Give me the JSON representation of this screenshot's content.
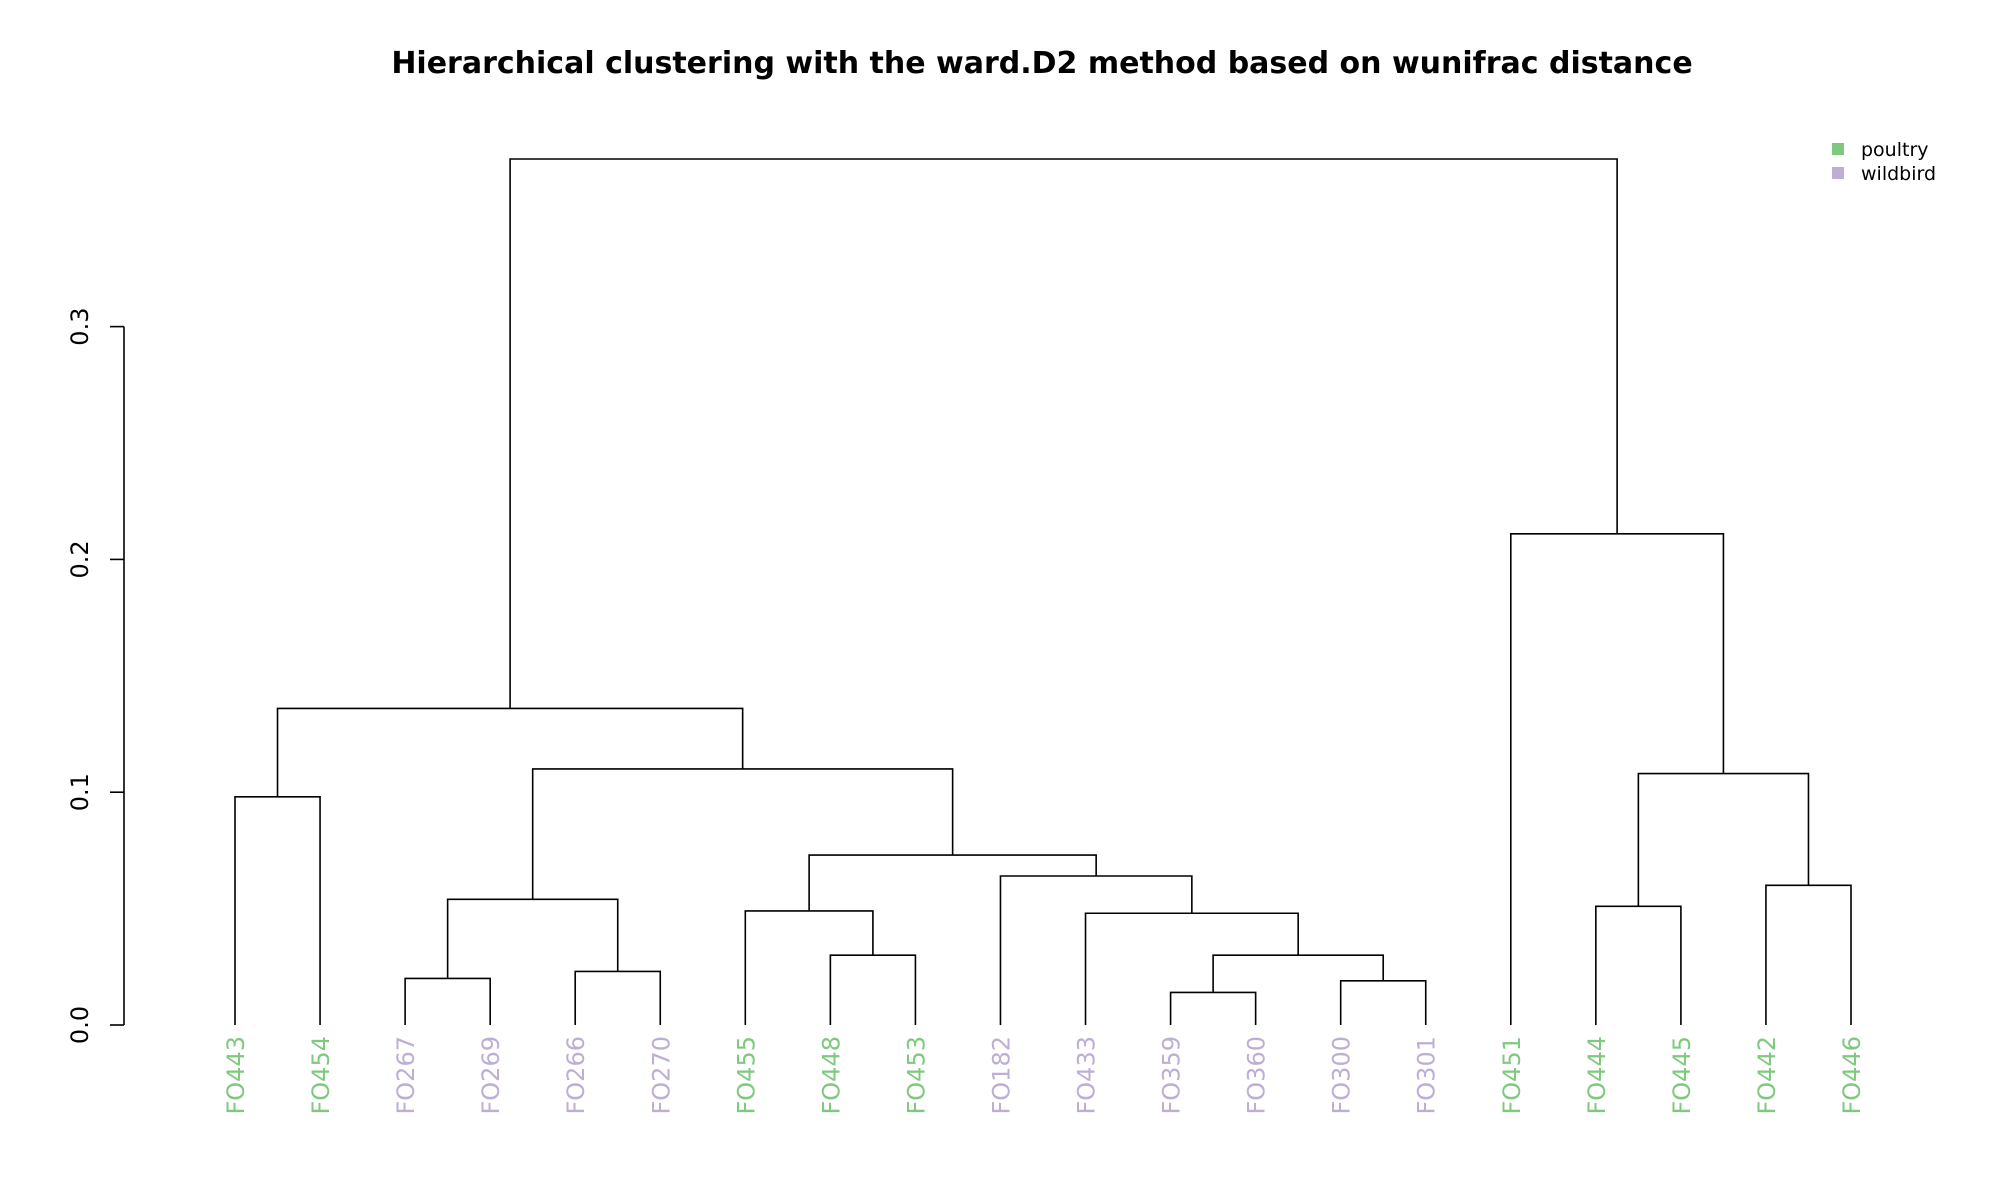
{
  "chart_data": {
    "type": "dendrogram",
    "title": "Hierarchical clustering with the ward.D2 method based on wunifrac distance",
    "xlabel": "",
    "ylabel": "",
    "ylim": [
      0,
      0.372
    ],
    "yticks": [
      {
        "value": 0.0,
        "label": "0.0"
      },
      {
        "value": 0.1,
        "label": "0.1"
      },
      {
        "value": 0.2,
        "label": "0.2"
      },
      {
        "value": 0.3,
        "label": "0.3"
      }
    ],
    "grid": false,
    "legend_position": "top-right",
    "groups": [
      {
        "name": "poultry",
        "color": "#7FC97F"
      },
      {
        "name": "wildbird",
        "color": "#BEAED4"
      }
    ],
    "leaves": [
      {
        "label": "FO443",
        "group": "poultry"
      },
      {
        "label": "FO454",
        "group": "poultry"
      },
      {
        "label": "FO267",
        "group": "wildbird"
      },
      {
        "label": "FO269",
        "group": "wildbird"
      },
      {
        "label": "FO266",
        "group": "wildbird"
      },
      {
        "label": "FO270",
        "group": "wildbird"
      },
      {
        "label": "FO455",
        "group": "poultry"
      },
      {
        "label": "FO448",
        "group": "poultry"
      },
      {
        "label": "FO453",
        "group": "poultry"
      },
      {
        "label": "FO182",
        "group": "wildbird"
      },
      {
        "label": "FO433",
        "group": "wildbird"
      },
      {
        "label": "FO359",
        "group": "wildbird"
      },
      {
        "label": "FO360",
        "group": "wildbird"
      },
      {
        "label": "FO300",
        "group": "wildbird"
      },
      {
        "label": "FO301",
        "group": "wildbird"
      },
      {
        "label": "FO451",
        "group": "poultry"
      },
      {
        "label": "FO444",
        "group": "poultry"
      },
      {
        "label": "FO445",
        "group": "poultry"
      },
      {
        "label": "FO442",
        "group": "poultry"
      },
      {
        "label": "FO446",
        "group": "poultry"
      }
    ],
    "merges": [
      {
        "left": "FO359",
        "right": "FO360",
        "height": 0.014
      },
      {
        "left": "FO300",
        "right": "FO301",
        "height": 0.019
      },
      {
        "left": "FO267",
        "right": "FO269",
        "height": 0.02
      },
      {
        "left": "FO266",
        "right": "FO270",
        "height": 0.023
      },
      {
        "left": "FO448",
        "right": "FO453",
        "height": 0.03
      },
      {
        "left": 0,
        "right": 1,
        "height": 0.03
      },
      {
        "left": "FO433",
        "right": 5,
        "height": 0.048
      },
      {
        "left": "FO455",
        "right": 4,
        "height": 0.049
      },
      {
        "left": "FO444",
        "right": "FO445",
        "height": 0.051
      },
      {
        "left": 2,
        "right": 3,
        "height": 0.054
      },
      {
        "left": "FO442",
        "right": "FO446",
        "height": 0.06
      },
      {
        "left": "FO182",
        "right": 6,
        "height": 0.064
      },
      {
        "left": 7,
        "right": 11,
        "height": 0.073
      },
      {
        "left": "FO443",
        "right": "FO454",
        "height": 0.098
      },
      {
        "left": 8,
        "right": 10,
        "height": 0.108
      },
      {
        "left": 9,
        "right": 12,
        "height": 0.11
      },
      {
        "left": 13,
        "right": 15,
        "height": 0.136
      },
      {
        "left": "FO451",
        "right": 14,
        "height": 0.211
      },
      {
        "left": 16,
        "right": 17,
        "height": 0.372
      }
    ]
  }
}
